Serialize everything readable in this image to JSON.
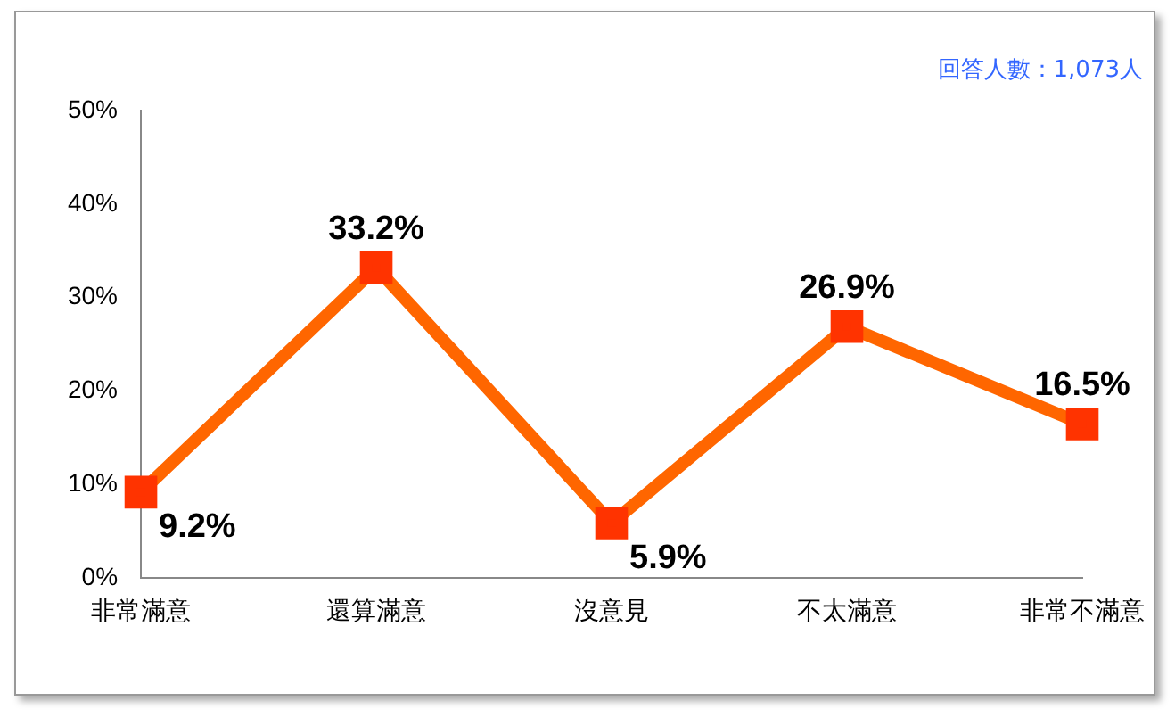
{
  "chart_data": {
    "type": "line",
    "categories": [
      "非常滿意",
      "還算滿意",
      "沒意見",
      "不太滿意",
      "非常不滿意"
    ],
    "series": [
      {
        "color": "#ff6600",
        "values": [
          9.2,
          33.2,
          5.9,
          26.9,
          16.5
        ],
        "value_labels": [
          "9.2%",
          "33.2%",
          "5.9%",
          "26.9%",
          "16.5%"
        ]
      }
    ],
    "ylim": [
      0,
      50
    ],
    "yticks": [
      {
        "value": 0,
        "label": "0%"
      },
      {
        "value": 10,
        "label": "10%"
      },
      {
        "value": 20,
        "label": "20%"
      },
      {
        "value": 30,
        "label": "30%"
      },
      {
        "value": 40,
        "label": "40%"
      },
      {
        "value": 50,
        "label": "50%"
      }
    ],
    "annotations": [
      "回答人數：1,073人"
    ],
    "grid": false,
    "legend": false,
    "marker": "square",
    "line_style": "solid"
  }
}
